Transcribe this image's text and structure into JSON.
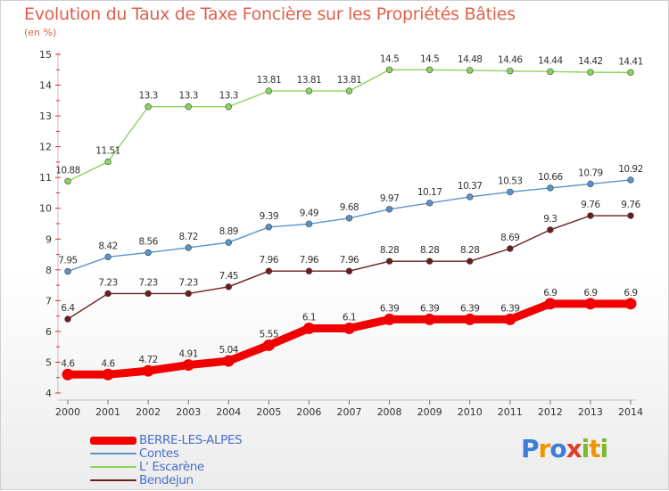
{
  "title": "Evolution du Taux de Taxe Foncière sur les Propriétés Bâties",
  "subtitle": "(en %)",
  "logo": {
    "text": "Proxiti",
    "letters": [
      {
        "ch": "P",
        "color": "#3b7dd8"
      },
      {
        "ch": "r",
        "color": "#f29400"
      },
      {
        "ch": "o",
        "color": "#3b7dd8"
      },
      {
        "ch": "x",
        "color": "#e03b2b"
      },
      {
        "ch": "i",
        "color": "#7cb82f"
      },
      {
        "ch": "t",
        "color": "#f29400"
      },
      {
        "ch": "i",
        "color": "#7cb82f"
      }
    ]
  },
  "chart_data": {
    "type": "line",
    "title": "Evolution du Taux de Taxe Foncière sur les Propriétés Bâties",
    "ylabel": "(en %)",
    "xlabel": "",
    "ylim": [
      4,
      15
    ],
    "yticks": [
      4,
      5,
      6,
      7,
      8,
      9,
      10,
      11,
      12,
      13,
      14,
      15
    ],
    "ytick_labels": [
      "4",
      "5",
      "6",
      "7",
      "8",
      "9",
      "10",
      "11",
      "12",
      "13",
      "14",
      "15"
    ],
    "x": [
      "2000",
      "2001",
      "2002",
      "2003",
      "2004",
      "2005",
      "2006",
      "2007",
      "2008",
      "2009",
      "2010",
      "2011",
      "2012",
      "2013",
      "2014"
    ],
    "grid": false,
    "legend_position": "bottom-left",
    "series": [
      {
        "name": "BERRE-LES-ALPES",
        "color": "#f20000",
        "emphasis": true,
        "values": [
          4.6,
          4.6,
          4.72,
          4.91,
          5.04,
          5.55,
          6.1,
          6.1,
          6.39,
          6.39,
          6.39,
          6.39,
          6.9,
          6.9,
          6.9
        ],
        "labels": [
          "4.6",
          "4.6",
          "4.72",
          "4.91",
          "5.04",
          "5.55",
          "6.1",
          "6.1",
          "6.39",
          "6.39",
          "6.39",
          "6.39",
          "6.9",
          "6.9",
          "6.9"
        ]
      },
      {
        "name": "Contes",
        "color": "#5b93c7",
        "emphasis": false,
        "values": [
          7.95,
          8.42,
          8.56,
          8.72,
          8.89,
          9.39,
          9.49,
          9.68,
          9.97,
          10.17,
          10.37,
          10.53,
          10.66,
          10.79,
          10.92
        ],
        "labels": [
          "7.95",
          "8.42",
          "8.56",
          "8.72",
          "8.89",
          "9.39",
          "9.49",
          "9.68",
          "9.97",
          "10.17",
          "10.37",
          "10.53",
          "10.66",
          "10.79",
          "10.92"
        ]
      },
      {
        "name": "L' Escarène",
        "color": "#8bd45b",
        "emphasis": false,
        "values": [
          10.88,
          11.51,
          13.3,
          13.3,
          13.3,
          13.81,
          13.81,
          13.81,
          14.5,
          14.5,
          14.48,
          14.46,
          14.44,
          14.42,
          14.41
        ],
        "labels": [
          "10.88",
          "11.51",
          "13.3",
          "13.3",
          "13.3",
          "13.81",
          "13.81",
          "13.81",
          "14.5",
          "14.5",
          "14.48",
          "14.46",
          "14.44",
          "14.42",
          "14.41"
        ]
      },
      {
        "name": "Bendejun",
        "color": "#6b1c1c",
        "emphasis": false,
        "values": [
          6.4,
          7.23,
          7.23,
          7.23,
          7.45,
          7.96,
          7.96,
          7.96,
          8.28,
          8.28,
          8.28,
          8.69,
          9.3,
          9.76,
          9.76
        ],
        "labels": [
          "6.4",
          "7.23",
          "7.23",
          "7.23",
          "7.45",
          "7.96",
          "7.96",
          "7.96",
          "8.28",
          "8.28",
          "8.28",
          "8.69",
          "9.3",
          "9.76",
          "9.76"
        ]
      }
    ]
  }
}
